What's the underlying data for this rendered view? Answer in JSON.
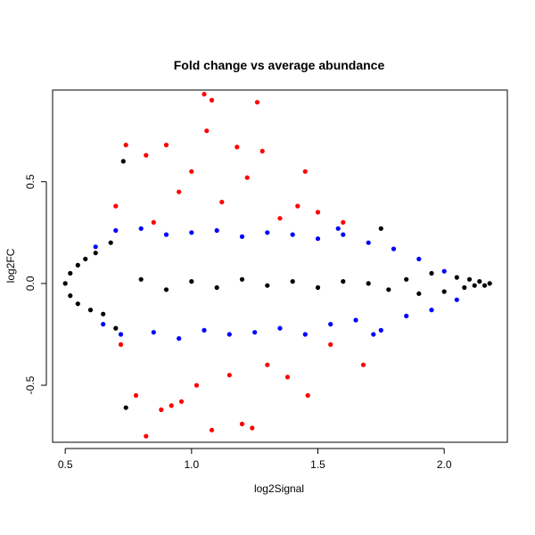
{
  "chart_data": {
    "type": "scatter",
    "title": "Fold change vs average abundance",
    "xlabel": "log2Signal",
    "ylabel": "log2FC",
    "xlim": [
      0.45,
      2.25
    ],
    "ylim": [
      -0.78,
      0.95
    ],
    "x_ticks": [
      0.5,
      1.0,
      1.5,
      2.0
    ],
    "x_tick_labels": [
      "0.5",
      "1.0",
      "1.5",
      "2.0"
    ],
    "y_ticks": [
      -0.5,
      0.0,
      0.5
    ],
    "y_tick_labels": [
      "-0.5",
      "0.0",
      "0.5"
    ],
    "grid": false,
    "legend": "none",
    "series": [
      {
        "color": "#000000",
        "points": [
          [
            0.5,
            0.0
          ],
          [
            0.52,
            0.05
          ],
          [
            0.52,
            -0.06
          ],
          [
            0.55,
            0.09
          ],
          [
            0.55,
            -0.1
          ],
          [
            0.58,
            0.12
          ],
          [
            0.6,
            -0.13
          ],
          [
            0.62,
            0.15
          ],
          [
            0.65,
            -0.15
          ],
          [
            0.68,
            0.2
          ],
          [
            0.7,
            -0.22
          ],
          [
            0.73,
            0.6
          ],
          [
            0.74,
            -0.61
          ],
          [
            0.8,
            0.02
          ],
          [
            0.9,
            -0.03
          ],
          [
            1.0,
            0.01
          ],
          [
            1.1,
            -0.02
          ],
          [
            1.2,
            0.02
          ],
          [
            1.3,
            -0.01
          ],
          [
            1.4,
            0.01
          ],
          [
            1.5,
            -0.02
          ],
          [
            1.6,
            0.01
          ],
          [
            1.7,
            0.0
          ],
          [
            1.75,
            0.27
          ],
          [
            1.78,
            -0.03
          ],
          [
            1.85,
            0.02
          ],
          [
            1.9,
            -0.05
          ],
          [
            1.95,
            0.05
          ],
          [
            2.0,
            -0.04
          ],
          [
            2.05,
            0.03
          ],
          [
            2.08,
            -0.02
          ],
          [
            2.1,
            0.02
          ],
          [
            2.12,
            -0.01
          ],
          [
            2.14,
            0.01
          ],
          [
            2.16,
            -0.01
          ],
          [
            2.18,
            0.0
          ]
        ]
      },
      {
        "color": "#0000ff",
        "points": [
          [
            0.62,
            0.18
          ],
          [
            0.65,
            -0.2
          ],
          [
            0.7,
            0.26
          ],
          [
            0.72,
            -0.25
          ],
          [
            0.8,
            0.27
          ],
          [
            0.85,
            -0.24
          ],
          [
            0.9,
            0.24
          ],
          [
            0.95,
            -0.27
          ],
          [
            1.0,
            0.25
          ],
          [
            1.05,
            -0.23
          ],
          [
            1.1,
            0.26
          ],
          [
            1.15,
            -0.25
          ],
          [
            1.2,
            0.23
          ],
          [
            1.25,
            -0.24
          ],
          [
            1.3,
            0.25
          ],
          [
            1.35,
            -0.22
          ],
          [
            1.4,
            0.24
          ],
          [
            1.45,
            -0.25
          ],
          [
            1.5,
            0.22
          ],
          [
            1.55,
            -0.2
          ],
          [
            1.6,
            0.24
          ],
          [
            1.65,
            -0.18
          ],
          [
            1.7,
            0.2
          ],
          [
            1.75,
            -0.23
          ],
          [
            1.8,
            0.17
          ],
          [
            1.85,
            -0.16
          ],
          [
            1.9,
            0.12
          ],
          [
            1.95,
            -0.13
          ],
          [
            2.0,
            0.06
          ],
          [
            2.05,
            -0.08
          ],
          [
            1.58,
            0.27
          ],
          [
            1.72,
            -0.25
          ]
        ]
      },
      {
        "color": "#ff0000",
        "points": [
          [
            0.74,
            0.68
          ],
          [
            0.78,
            -0.55
          ],
          [
            0.82,
            0.63
          ],
          [
            0.82,
            -0.75
          ],
          [
            0.85,
            0.3
          ],
          [
            0.88,
            -0.62
          ],
          [
            0.9,
            0.68
          ],
          [
            0.92,
            -0.6
          ],
          [
            0.95,
            0.45
          ],
          [
            0.96,
            -0.58
          ],
          [
            1.0,
            0.55
          ],
          [
            1.02,
            -0.5
          ],
          [
            1.05,
            0.93
          ],
          [
            1.06,
            0.75
          ],
          [
            1.08,
            0.9
          ],
          [
            1.08,
            -0.72
          ],
          [
            1.12,
            0.4
          ],
          [
            1.15,
            -0.45
          ],
          [
            1.18,
            0.67
          ],
          [
            1.2,
            -0.69
          ],
          [
            1.22,
            0.52
          ],
          [
            1.24,
            -0.71
          ],
          [
            1.26,
            0.89
          ],
          [
            1.28,
            0.65
          ],
          [
            1.3,
            -0.4
          ],
          [
            1.35,
            0.32
          ],
          [
            1.38,
            -0.46
          ],
          [
            1.42,
            0.38
          ],
          [
            1.45,
            0.55
          ],
          [
            1.46,
            -0.55
          ],
          [
            1.5,
            0.35
          ],
          [
            1.55,
            -0.3
          ],
          [
            1.6,
            0.3
          ],
          [
            1.68,
            -0.4
          ],
          [
            0.7,
            0.38
          ],
          [
            0.72,
            -0.3
          ]
        ]
      }
    ]
  }
}
